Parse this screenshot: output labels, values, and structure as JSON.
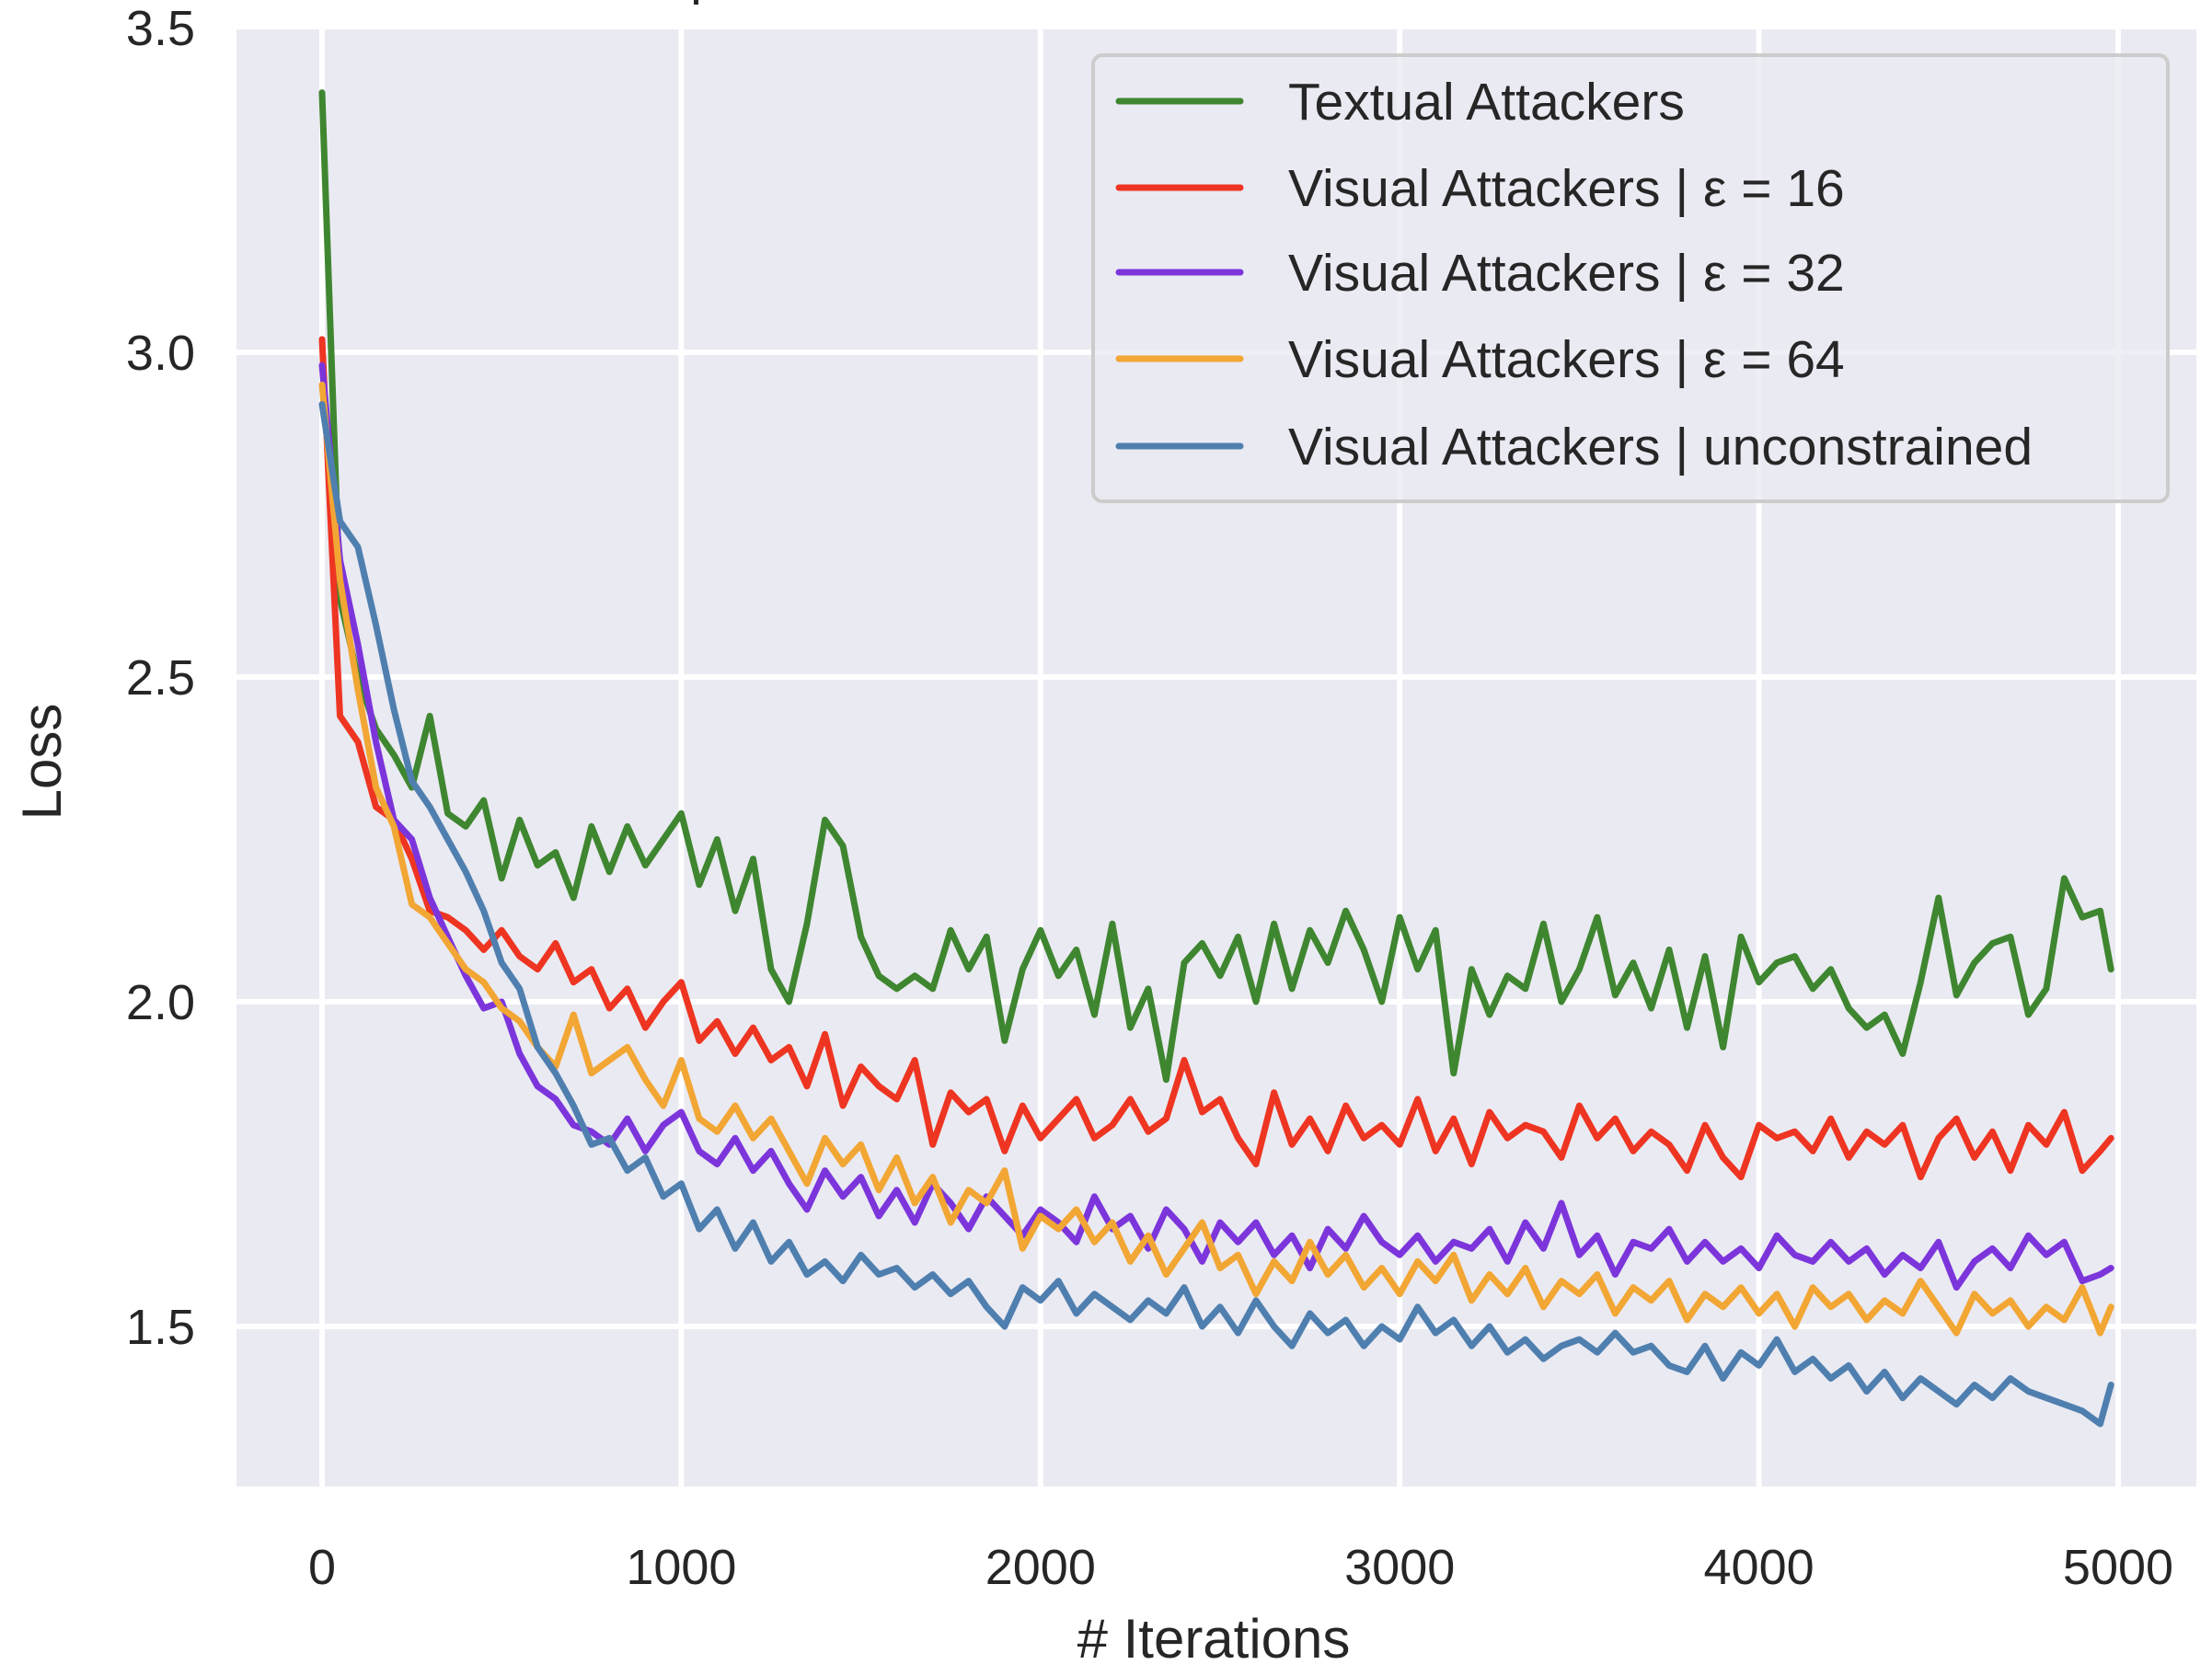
{
  "chart_data": {
    "type": "line",
    "title": "",
    "xlabel": "# Iterations",
    "ylabel": "Loss",
    "xlim": [
      -238,
      5218
    ],
    "ylim": [
      1.253,
      3.5
    ],
    "xticks": [
      0,
      1000,
      2000,
      3000,
      4000,
      5000
    ],
    "xtick_labels": [
      "0",
      "1000",
      "2000",
      "3000",
      "4000",
      "5000"
    ],
    "yticks": [
      1.5,
      2.0,
      2.5,
      3.0,
      3.5
    ],
    "ytick_labels": [
      "1.5",
      "2.0",
      "2.5",
      "3.0",
      "3.5"
    ],
    "grid": true,
    "background": "#EAEAF2",
    "legend_position": "upper right",
    "x": [
      0,
      50,
      100,
      150,
      200,
      250,
      300,
      350,
      400,
      450,
      500,
      550,
      600,
      650,
      700,
      750,
      800,
      850,
      900,
      950,
      1000,
      1050,
      1100,
      1150,
      1200,
      1250,
      1300,
      1350,
      1400,
      1450,
      1500,
      1550,
      1600,
      1650,
      1700,
      1750,
      1800,
      1850,
      1900,
      1950,
      2000,
      2050,
      2100,
      2150,
      2200,
      2250,
      2300,
      2350,
      2400,
      2450,
      2500,
      2550,
      2600,
      2650,
      2700,
      2750,
      2800,
      2850,
      2900,
      2950,
      3000,
      3050,
      3100,
      3150,
      3200,
      3250,
      3300,
      3350,
      3400,
      3450,
      3500,
      3550,
      3600,
      3650,
      3700,
      3750,
      3800,
      3850,
      3900,
      3950,
      4000,
      4050,
      4100,
      4150,
      4200,
      4250,
      4300,
      4350,
      4400,
      4450,
      4500,
      4550,
      4600,
      4650,
      4700,
      4750,
      4800,
      4850,
      4900,
      4950,
      4980
    ],
    "series": [
      {
        "name": "Textual Attackers",
        "color": "#3F8630",
        "values": [
          3.4,
          2.62,
          2.5,
          2.42,
          2.38,
          2.33,
          2.44,
          2.29,
          2.27,
          2.31,
          2.19,
          2.28,
          2.21,
          2.23,
          2.16,
          2.27,
          2.2,
          2.27,
          2.21,
          2.25,
          2.29,
          2.18,
          2.25,
          2.14,
          2.22,
          2.05,
          2.0,
          2.12,
          2.28,
          2.24,
          2.1,
          2.04,
          2.02,
          2.04,
          2.02,
          2.11,
          2.05,
          2.1,
          1.94,
          2.05,
          2.11,
          2.04,
          2.08,
          1.98,
          2.12,
          1.96,
          2.02,
          1.88,
          2.06,
          2.09,
          2.04,
          2.1,
          2.0,
          2.12,
          2.02,
          2.11,
          2.06,
          2.14,
          2.08,
          2.0,
          2.13,
          2.05,
          2.11,
          1.89,
          2.05,
          1.98,
          2.04,
          2.02,
          2.12,
          2.0,
          2.05,
          2.13,
          2.01,
          2.06,
          1.99,
          2.08,
          1.96,
          2.07,
          1.93,
          2.1,
          2.03,
          2.06,
          2.07,
          2.02,
          2.05,
          1.99,
          1.96,
          1.98,
          1.92,
          2.03,
          2.16,
          2.01,
          2.06,
          2.09,
          2.1,
          1.98,
          2.02,
          2.19,
          2.13,
          2.14,
          2.05
        ]
      },
      {
        "name": "Visual Attackers | ε = 16",
        "color": "#EE3522",
        "values": [
          3.02,
          2.44,
          2.4,
          2.3,
          2.28,
          2.22,
          2.14,
          2.13,
          2.11,
          2.08,
          2.11,
          2.07,
          2.05,
          2.09,
          2.03,
          2.05,
          1.99,
          2.02,
          1.96,
          2.0,
          2.03,
          1.94,
          1.97,
          1.92,
          1.96,
          1.91,
          1.93,
          1.87,
          1.95,
          1.84,
          1.9,
          1.87,
          1.85,
          1.91,
          1.78,
          1.86,
          1.83,
          1.85,
          1.77,
          1.84,
          1.79,
          1.82,
          1.85,
          1.79,
          1.81,
          1.85,
          1.8,
          1.82,
          1.91,
          1.83,
          1.85,
          1.79,
          1.75,
          1.86,
          1.78,
          1.82,
          1.77,
          1.84,
          1.79,
          1.81,
          1.78,
          1.85,
          1.77,
          1.82,
          1.75,
          1.83,
          1.79,
          1.81,
          1.8,
          1.76,
          1.84,
          1.79,
          1.82,
          1.77,
          1.8,
          1.78,
          1.74,
          1.81,
          1.76,
          1.73,
          1.81,
          1.79,
          1.8,
          1.77,
          1.82,
          1.76,
          1.8,
          1.78,
          1.81,
          1.73,
          1.79,
          1.82,
          1.76,
          1.8,
          1.74,
          1.81,
          1.78,
          1.83,
          1.74,
          1.77,
          1.79
        ]
      },
      {
        "name": "Visual Attackers | ε = 32",
        "color": "#7C35DB",
        "values": [
          2.98,
          2.68,
          2.55,
          2.4,
          2.28,
          2.25,
          2.16,
          2.1,
          2.04,
          1.99,
          2.0,
          1.92,
          1.87,
          1.85,
          1.81,
          1.8,
          1.78,
          1.82,
          1.77,
          1.81,
          1.83,
          1.77,
          1.75,
          1.79,
          1.74,
          1.77,
          1.72,
          1.68,
          1.74,
          1.7,
          1.73,
          1.67,
          1.71,
          1.66,
          1.72,
          1.69,
          1.65,
          1.7,
          1.67,
          1.64,
          1.68,
          1.66,
          1.63,
          1.7,
          1.65,
          1.67,
          1.62,
          1.68,
          1.65,
          1.6,
          1.66,
          1.63,
          1.66,
          1.61,
          1.64,
          1.59,
          1.65,
          1.62,
          1.67,
          1.63,
          1.61,
          1.64,
          1.6,
          1.63,
          1.62,
          1.65,
          1.6,
          1.66,
          1.62,
          1.69,
          1.61,
          1.64,
          1.58,
          1.63,
          1.62,
          1.65,
          1.6,
          1.63,
          1.6,
          1.62,
          1.59,
          1.64,
          1.61,
          1.6,
          1.63,
          1.6,
          1.62,
          1.58,
          1.61,
          1.59,
          1.63,
          1.56,
          1.6,
          1.62,
          1.59,
          1.64,
          1.61,
          1.63,
          1.57,
          1.58,
          1.59
        ]
      },
      {
        "name": "Visual Attackers | ε = 64",
        "color": "#F2A634",
        "values": [
          2.95,
          2.65,
          2.48,
          2.33,
          2.27,
          2.15,
          2.13,
          2.09,
          2.05,
          2.03,
          1.99,
          1.97,
          1.93,
          1.9,
          1.98,
          1.89,
          1.91,
          1.93,
          1.88,
          1.84,
          1.91,
          1.82,
          1.8,
          1.84,
          1.79,
          1.82,
          1.77,
          1.72,
          1.79,
          1.75,
          1.78,
          1.71,
          1.76,
          1.69,
          1.73,
          1.66,
          1.71,
          1.69,
          1.74,
          1.62,
          1.67,
          1.65,
          1.68,
          1.63,
          1.66,
          1.6,
          1.64,
          1.58,
          1.62,
          1.66,
          1.59,
          1.61,
          1.55,
          1.6,
          1.57,
          1.63,
          1.58,
          1.61,
          1.56,
          1.59,
          1.55,
          1.6,
          1.57,
          1.61,
          1.54,
          1.58,
          1.55,
          1.59,
          1.53,
          1.57,
          1.55,
          1.58,
          1.52,
          1.56,
          1.54,
          1.57,
          1.51,
          1.55,
          1.53,
          1.56,
          1.52,
          1.55,
          1.5,
          1.56,
          1.53,
          1.55,
          1.51,
          1.54,
          1.52,
          1.57,
          1.53,
          1.49,
          1.55,
          1.52,
          1.54,
          1.5,
          1.53,
          1.51,
          1.56,
          1.49,
          1.53
        ]
      },
      {
        "name": "Visual Attackers | unconstrained",
        "color": "#4F7FAF",
        "values": [
          2.92,
          2.74,
          2.7,
          2.58,
          2.45,
          2.34,
          2.3,
          2.25,
          2.2,
          2.14,
          2.06,
          2.02,
          1.93,
          1.89,
          1.84,
          1.78,
          1.79,
          1.74,
          1.76,
          1.7,
          1.72,
          1.65,
          1.68,
          1.62,
          1.66,
          1.6,
          1.63,
          1.58,
          1.6,
          1.57,
          1.61,
          1.58,
          1.59,
          1.56,
          1.58,
          1.55,
          1.57,
          1.53,
          1.5,
          1.56,
          1.54,
          1.57,
          1.52,
          1.55,
          1.53,
          1.51,
          1.54,
          1.52,
          1.56,
          1.5,
          1.53,
          1.49,
          1.54,
          1.5,
          1.47,
          1.52,
          1.49,
          1.51,
          1.47,
          1.5,
          1.48,
          1.53,
          1.49,
          1.51,
          1.47,
          1.5,
          1.46,
          1.48,
          1.45,
          1.47,
          1.48,
          1.46,
          1.49,
          1.46,
          1.47,
          1.44,
          1.43,
          1.47,
          1.42,
          1.46,
          1.44,
          1.48,
          1.43,
          1.45,
          1.42,
          1.44,
          1.4,
          1.43,
          1.39,
          1.42,
          1.4,
          1.38,
          1.41,
          1.39,
          1.42,
          1.4,
          1.39,
          1.38,
          1.37,
          1.35,
          1.41
        ]
      }
    ]
  },
  "legend": {
    "items": [
      {
        "label": "Textual Attackers",
        "color": "#3F8630"
      },
      {
        "label": "Visual Attackers | ε = 16",
        "color": "#EE3522"
      },
      {
        "label": "Visual Attackers | ε = 32",
        "color": "#7C35DB"
      },
      {
        "label": "Visual Attackers | ε = 64",
        "color": "#F2A634"
      },
      {
        "label": "Visual Attackers | unconstrained",
        "color": "#4F7FAF"
      }
    ]
  },
  "axes": {
    "xlabel": "# Iterations",
    "ylabel": "Loss"
  }
}
